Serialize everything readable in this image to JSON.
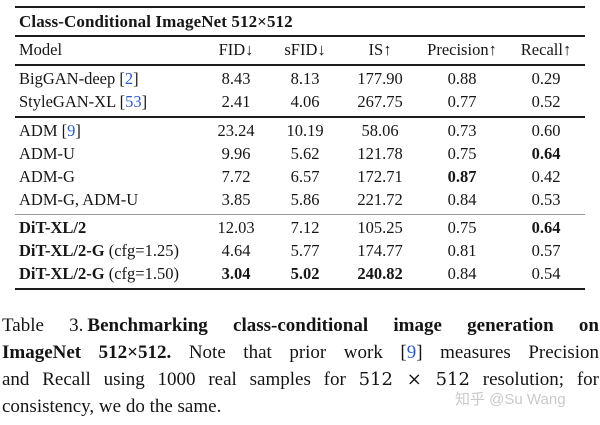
{
  "colors": {
    "citation_blue": "#2b5bc7",
    "text_black": "#161616",
    "rule_black": "#1c1c1c",
    "rule_gray": "#9b9b9b",
    "watermark_gray": "#c9c9c9"
  },
  "punct": {
    "open": "[",
    "close": "]"
  },
  "table": {
    "title": "Class-Conditional ImageNet 512×512",
    "columns": [
      "Model",
      "FID↓",
      "sFID↓",
      "IS↑",
      "Precision↑",
      "Recall↑"
    ],
    "rows": [
      {
        "name": "BigGAN-deep",
        "cite": "2",
        "fid": "8.43",
        "sfid": "8.13",
        "is": "177.90",
        "precision": "0.88",
        "recall": "0.29"
      },
      {
        "name": "StyleGAN-XL",
        "cite": "53",
        "fid": "2.41",
        "sfid": "4.06",
        "is": "267.75",
        "precision": "0.77",
        "recall": "0.52"
      },
      {
        "name": "ADM",
        "cite": "9",
        "fid": "23.24",
        "sfid": "10.19",
        "is": "58.06",
        "precision": "0.73",
        "recall": "0.60"
      },
      {
        "name": "ADM-U",
        "fid": "9.96",
        "sfid": "5.62",
        "is": "121.78",
        "precision": "0.75",
        "recall": "0.64"
      },
      {
        "name": "ADM-G",
        "fid": "7.72",
        "sfid": "6.57",
        "is": "172.71",
        "precision": "0.87",
        "recall": "0.42"
      },
      {
        "name": "ADM-G, ADM-U",
        "fid": "3.85",
        "sfid": "5.86",
        "is": "221.72",
        "precision": "0.84",
        "recall": "0.53"
      },
      {
        "name": "DiT-XL/2",
        "fid": "12.03",
        "sfid": "7.12",
        "is": "105.25",
        "precision": "0.75",
        "recall": "0.64"
      },
      {
        "name": "DiT-XL/2-G",
        "suffix": "(cfg=1.25)",
        "fid": "4.64",
        "sfid": "5.77",
        "is": "174.77",
        "precision": "0.81",
        "recall": "0.57"
      },
      {
        "name": "DiT-XL/2-G",
        "suffix": "(cfg=1.50)",
        "fid": "3.04",
        "sfid": "5.02",
        "is": "240.82",
        "precision": "0.84",
        "recall": "0.54"
      }
    ]
  },
  "caption": {
    "line1_label": "Table 3.",
    "line1_bold": "Benchmarking class-conditional image generation on",
    "line2_bold": "ImageNet 512×512.",
    "line2_text": "Note that prior work",
    "line2_cite": "9",
    "line2_end": "measures Precision",
    "line3_start": "and Recall using 1000 real samples for",
    "line3_math": "512 × 512",
    "line3_end": "resolution; for",
    "line4": "consistency, we do the same."
  },
  "watermark": {
    "text": "知乎 @Su Wang"
  }
}
